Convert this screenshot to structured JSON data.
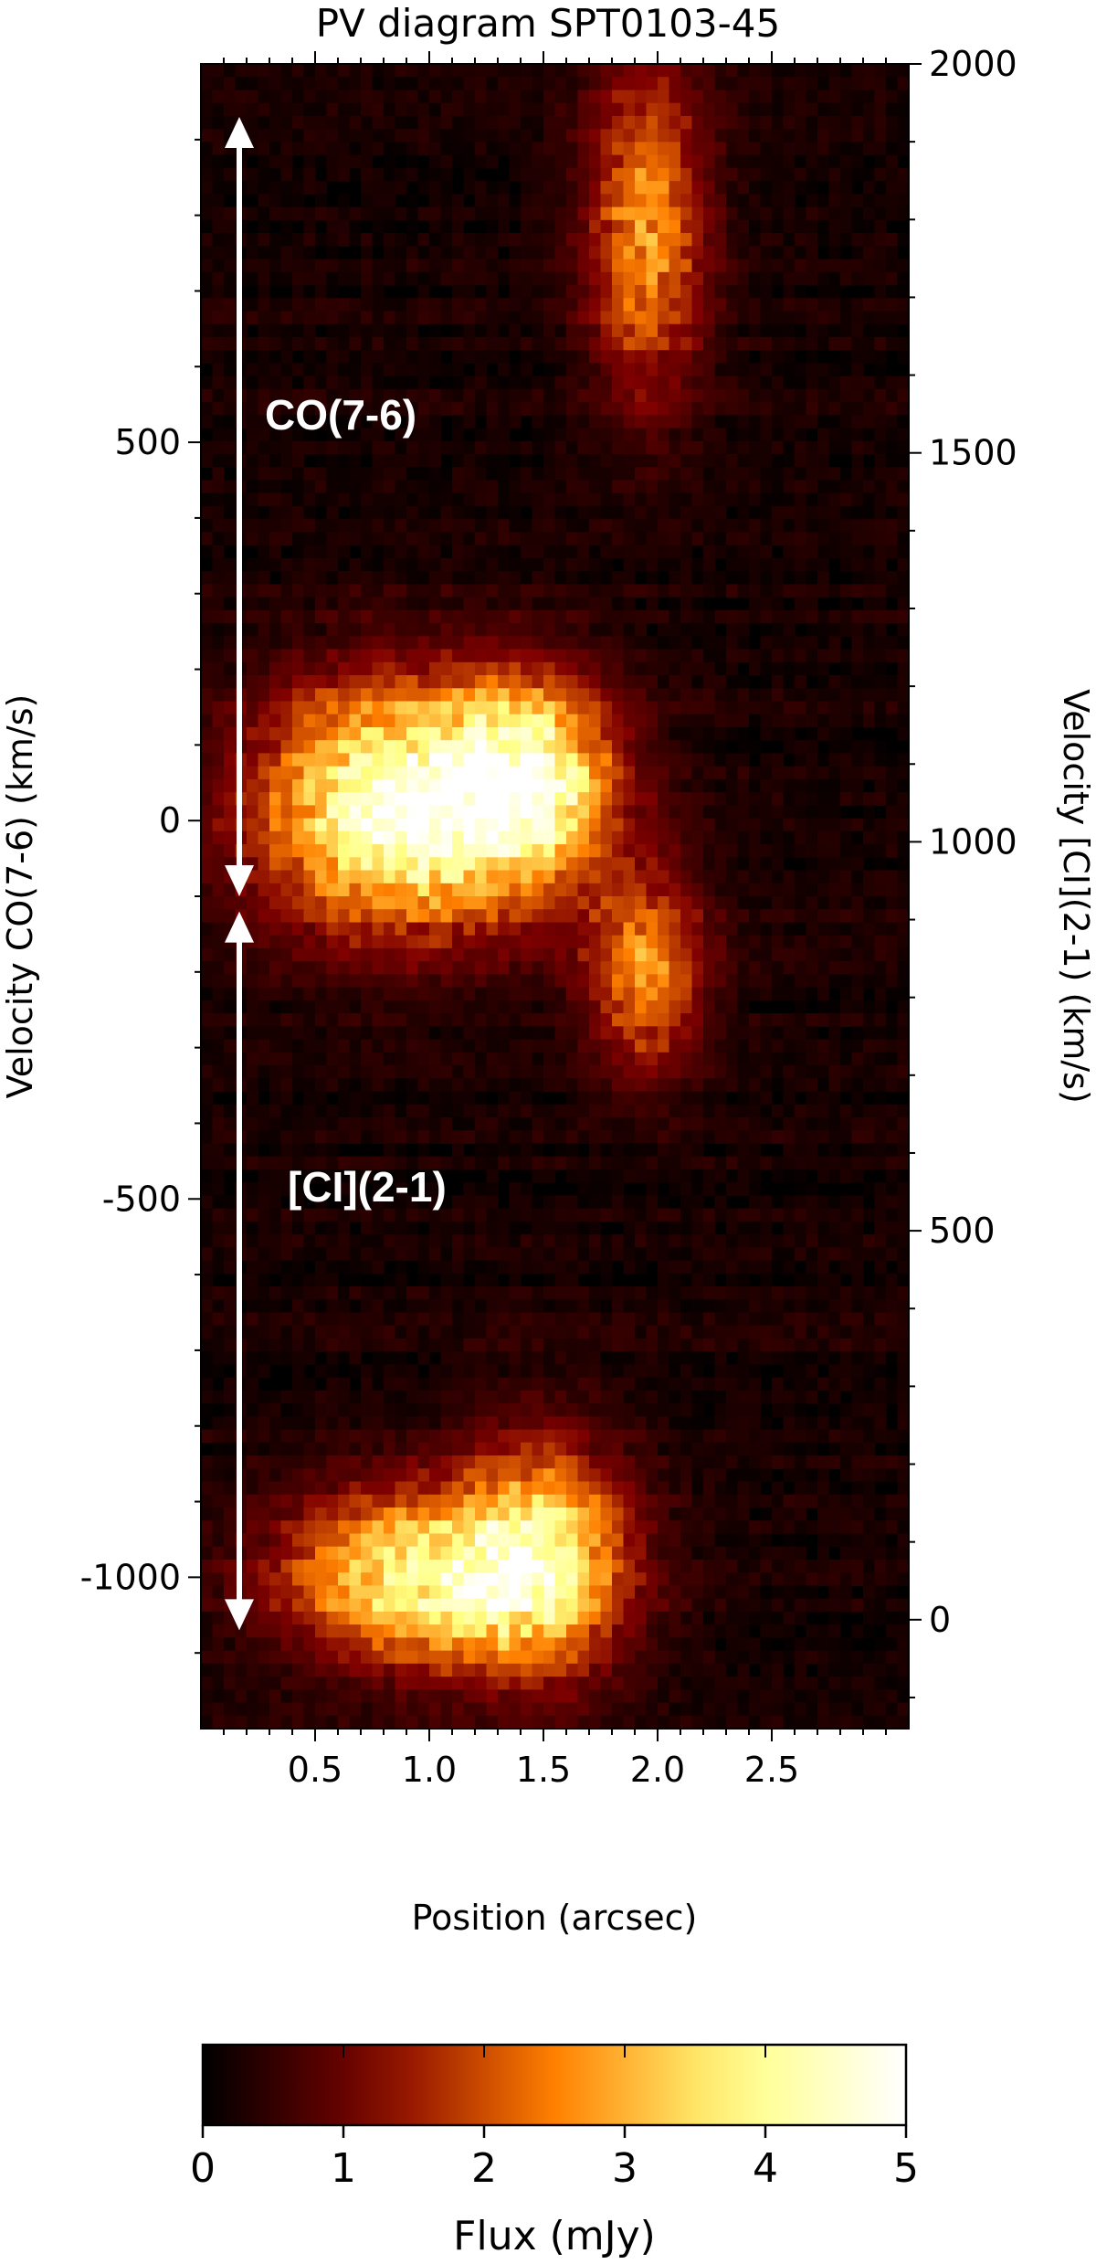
{
  "chart_data": {
    "type": "heatmap",
    "title": "PV diagram SPT0103-45",
    "xlabel": "Position (arcsec)",
    "ylabel_left": "Velocity CO(7-6) (km/s)",
    "ylabel_right": "Velocity [CI](2-1) (km/s)",
    "xlim": [
      0,
      3.1
    ],
    "ylim_left": [
      -1200,
      1000
    ],
    "ylim_right": [
      -140,
      2000
    ],
    "x_ticks": [
      0.5,
      1.0,
      1.5,
      2.0,
      2.5
    ],
    "x_tick_labels": [
      "0.5",
      "1.0",
      "1.5",
      "2.0",
      "2.5"
    ],
    "y_ticks_left": [
      -1000,
      -500,
      0,
      500
    ],
    "y_tick_labels_left": [
      "-1000",
      "-500",
      "0",
      "500"
    ],
    "y_ticks_right": [
      0,
      500,
      1000,
      1500,
      2000
    ],
    "y_tick_labels_right": [
      "0",
      "500",
      "1000",
      "1500",
      "2000"
    ],
    "colormap": "afmhot",
    "colorbar": {
      "label": "Flux (mJy)",
      "range": [
        0,
        5
      ],
      "ticks": [
        0,
        1,
        2,
        3,
        4,
        5
      ],
      "tick_labels": [
        "0",
        "1",
        "2",
        "3",
        "4",
        "5"
      ]
    },
    "emission_regions": [
      {
        "x_center": 0.9,
        "v_center": 20,
        "x_width": 0.45,
        "v_width": 110,
        "peak_mJy": 4.6
      },
      {
        "x_center": 1.45,
        "v_center": 60,
        "x_width": 0.25,
        "v_width": 90,
        "peak_mJy": 3.0
      },
      {
        "x_center": 1.0,
        "v_center": -1000,
        "x_width": 0.45,
        "v_width": 80,
        "peak_mJy": 3.7
      },
      {
        "x_center": 1.5,
        "v_center": -970,
        "x_width": 0.25,
        "v_width": 110,
        "peak_mJy": 2.6
      },
      {
        "x_center": 1.95,
        "v_center": 780,
        "x_width": 0.18,
        "v_width": 150,
        "peak_mJy": 2.5
      },
      {
        "x_center": 1.95,
        "v_center": -200,
        "x_width": 0.18,
        "v_width": 90,
        "peak_mJy": 2.4
      }
    ],
    "annotations": [
      {
        "text": "CO(7-6)",
        "arrow_from_v": 930,
        "arrow_to_v": -100
      },
      {
        "text": "[CI](2-1)",
        "arrow_from_v": -120,
        "arrow_to_v": -1070
      }
    ]
  }
}
